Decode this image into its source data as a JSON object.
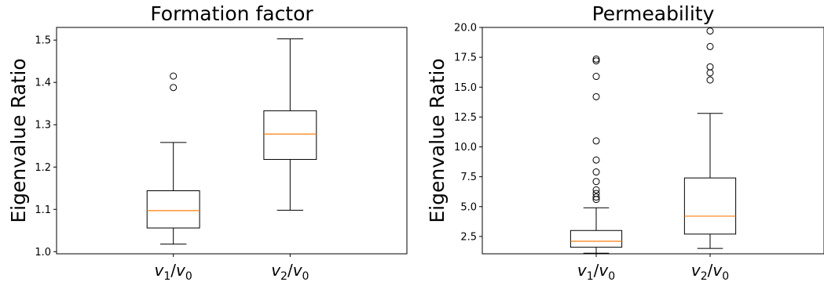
{
  "chart_data": [
    {
      "type": "box",
      "title": "Formation factor",
      "ylabel": "Eigenvalue Ratio",
      "xlabel": "",
      "ylim": [
        0.995,
        1.53
      ],
      "yticks": [
        1.0,
        1.1,
        1.2,
        1.3,
        1.4,
        1.5
      ],
      "ytick_labels": [
        "1.0",
        "1.1",
        "1.2",
        "1.3",
        "1.4",
        "1.5"
      ],
      "grid": false,
      "categories": [
        "v1/v0",
        "v2/v0"
      ],
      "boxes": [
        {
          "category": "v1/v0",
          "whisker_low": 1.018,
          "q1": 1.056,
          "median": 1.097,
          "q3": 1.144,
          "whisker_high": 1.258,
          "outliers": [
            1.388,
            1.415
          ]
        },
        {
          "category": "v2/v0",
          "whisker_low": 1.098,
          "q1": 1.218,
          "median": 1.278,
          "q3": 1.333,
          "whisker_high": 1.503,
          "outliers": []
        }
      ],
      "colors": {
        "box": "#000000",
        "median": "#ff7f0e"
      }
    },
    {
      "type": "box",
      "title": "Permeability",
      "ylabel": "Eigenvalue Ratio",
      "xlabel": "",
      "ylim": [
        1.05,
        20.0
      ],
      "yticks": [
        2.5,
        5.0,
        7.5,
        10.0,
        12.5,
        15.0,
        17.5,
        20.0
      ],
      "ytick_labels": [
        "2.5",
        "5.0",
        "7.5",
        "10.0",
        "12.5",
        "15.0",
        "17.5",
        "20.0"
      ],
      "grid": false,
      "categories": [
        "v1/v0",
        "v2/v0"
      ],
      "boxes": [
        {
          "category": "v1/v0",
          "whisker_low": 1.1,
          "q1": 1.6,
          "median": 2.1,
          "q3": 3.0,
          "whisker_high": 4.9,
          "outliers": [
            5.6,
            5.8,
            6.1,
            6.4,
            7.1,
            7.9,
            8.9,
            10.5,
            14.2,
            15.9,
            17.2,
            17.35
          ]
        },
        {
          "category": "v2/v0",
          "whisker_low": 1.5,
          "q1": 2.7,
          "median": 4.2,
          "q3": 7.4,
          "whisker_high": 12.8,
          "outliers": [
            15.6,
            16.2,
            16.7,
            18.4,
            19.7
          ]
        }
      ],
      "colors": {
        "box": "#000000",
        "median": "#ff7f0e"
      }
    }
  ]
}
